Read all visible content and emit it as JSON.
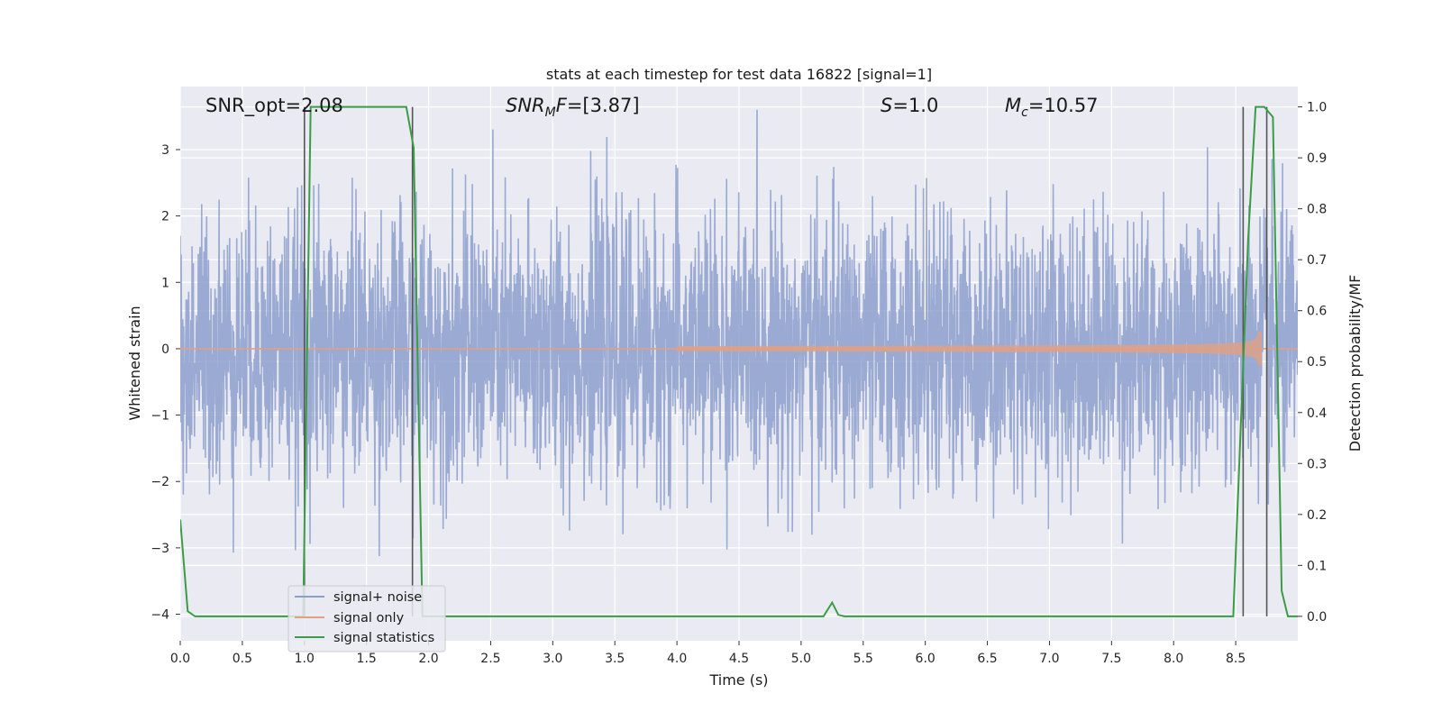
{
  "chart_data": {
    "type": "line",
    "title": "stats at each timestep for test data 16822 [signal=1]",
    "xlabel": "Time (s)",
    "ylabel": "Whitened strain",
    "ylabel_right": "Detection probability/MF",
    "xlim": [
      0.0,
      9.0
    ],
    "ylim": [
      -4.4,
      3.95
    ],
    "ylim_right": [
      -0.048,
      1.04
    ],
    "x_ticks": [
      "0.0",
      "0.5",
      "1.0",
      "1.5",
      "2.0",
      "2.5",
      "3.0",
      "3.5",
      "4.0",
      "4.5",
      "5.0",
      "5.5",
      "6.0",
      "6.5",
      "7.0",
      "7.5",
      "8.0",
      "8.5"
    ],
    "y_ticks": [
      "3",
      "2",
      "1",
      "0",
      "−1",
      "−2",
      "−3",
      "−4"
    ],
    "y_ticks_right": [
      "1.0",
      "0.9",
      "0.8",
      "0.7",
      "0.6",
      "0.5",
      "0.4",
      "0.3",
      "0.2",
      "0.1",
      "0.0"
    ],
    "grid": true,
    "legend_position": "lower-left",
    "annotations": {
      "snr_opt": "SNR_opt=2.08",
      "snr_mf_sym": "SNR",
      "snr_mf_sub": "M",
      "snr_mf_mid": "F",
      "snr_mf_val": "=[3.87]",
      "s_sym": "S",
      "s_val": "=1.0",
      "mc_sym": "M",
      "mc_sub": "c",
      "mc_val": "=10.57"
    },
    "series": [
      {
        "name": "signal+ noise",
        "color": "#8c9fcc",
        "kind": "noise",
        "x_range": [
          0.0,
          9.0
        ],
        "amplitude_std": 1.0,
        "approx_extent": [
          -4.0,
          3.6
        ],
        "seed": 16822
      },
      {
        "name": "signal only",
        "color": "#e0a085",
        "kind": "chirp",
        "x_range": [
          0.0,
          9.0
        ],
        "peak_time": 8.68,
        "peak_amplitude": 0.35
      },
      {
        "name": "signal statistics",
        "color": "#3a9d45",
        "axis": "right",
        "x": [
          0.0,
          0.06,
          0.12,
          0.99,
          1.05,
          1.82,
          1.88,
          1.95,
          5.18,
          5.25,
          5.3,
          5.35,
          8.48,
          8.6,
          8.66,
          8.73,
          8.8,
          8.87,
          8.92,
          9.0
        ],
        "y": [
          0.19,
          0.01,
          0.0,
          0.0,
          1.0,
          1.0,
          0.92,
          0.0,
          0.0,
          0.027,
          0.003,
          0.0,
          0.0,
          0.74,
          1.0,
          1.0,
          0.98,
          0.05,
          0.0,
          0.0
        ]
      }
    ],
    "vertical_markers": [
      1.0,
      1.87,
      8.56,
      8.75
    ],
    "colors": {
      "background": "#eaeaf2",
      "grid": "#ffffff",
      "marker": "#555555"
    }
  }
}
